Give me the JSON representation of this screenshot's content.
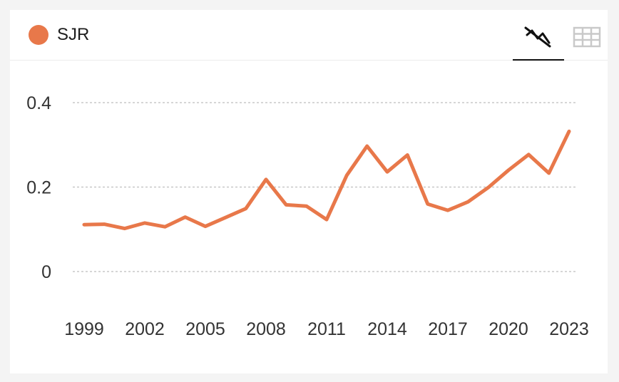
{
  "legend": {
    "label": "SJR",
    "color": "#e8784a"
  },
  "tabs": [
    {
      "icon": "line-chart-icon",
      "active": true
    },
    {
      "icon": "table-icon",
      "active": false
    }
  ],
  "chart_data": {
    "type": "line",
    "series": [
      {
        "name": "SJR",
        "color": "#e8784a",
        "x": [
          1999,
          2000,
          2001,
          2002,
          2003,
          2004,
          2005,
          2006,
          2007,
          2008,
          2009,
          2010,
          2011,
          2012,
          2013,
          2014,
          2015,
          2016,
          2017,
          2018,
          2019,
          2020,
          2021,
          2022,
          2023
        ],
        "values": [
          0.111,
          0.112,
          0.102,
          0.115,
          0.106,
          0.129,
          0.107,
          0.128,
          0.149,
          0.218,
          0.158,
          0.155,
          0.123,
          0.228,
          0.297,
          0.236,
          0.276,
          0.16,
          0.145,
          0.165,
          0.199,
          0.24,
          0.277,
          0.233,
          0.332
        ]
      }
    ],
    "x_ticks": [
      "1999",
      "2002",
      "2005",
      "2008",
      "2011",
      "2014",
      "2017",
      "2020",
      "2023"
    ],
    "y_ticks": [
      "0",
      "0.2",
      "0.4"
    ],
    "ylim": [
      0,
      0.4
    ],
    "xlim": [
      1999,
      2023
    ],
    "grid": true,
    "legend_position": "top-left"
  }
}
